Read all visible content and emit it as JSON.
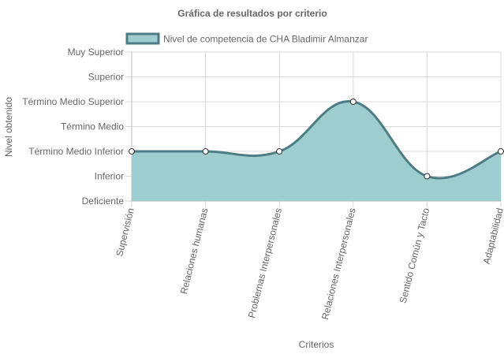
{
  "chart_data": {
    "type": "line",
    "title": "Gráfica de resultados por criterio",
    "xlabel": "Criterios",
    "ylabel": "Nivel obtenido",
    "categories": [
      "Supervisión",
      "Relaciones humanas",
      "Problemas Interpersonales",
      "Relaciones Interpersonales",
      "Sentido Común y Tacto",
      "Adaptabilidad"
    ],
    "y_tick_labels": [
      "Deficiente",
      "Inferior",
      "Término Medio Inferior",
      "Término Medio",
      "Término Medio Superior",
      "Superior",
      "Muy Superior"
    ],
    "ylim": [
      0,
      6
    ],
    "series": [
      {
        "name": "Nivel de competencia de CHA Bladimir Almanzar",
        "values": [
          2,
          2,
          2,
          4,
          1,
          2
        ],
        "value_labels": [
          "Término Medio Inferior",
          "Término Medio Inferior",
          "Término Medio Inferior",
          "Término Medio Superior",
          "Inferior",
          "Término Medio Inferior"
        ]
      }
    ],
    "fill": true,
    "grid": true,
    "legend_position": "top",
    "colors": {
      "line": "#4e7c84",
      "fill": "#9ecdd0",
      "point_fill": "#ffffff"
    }
  }
}
